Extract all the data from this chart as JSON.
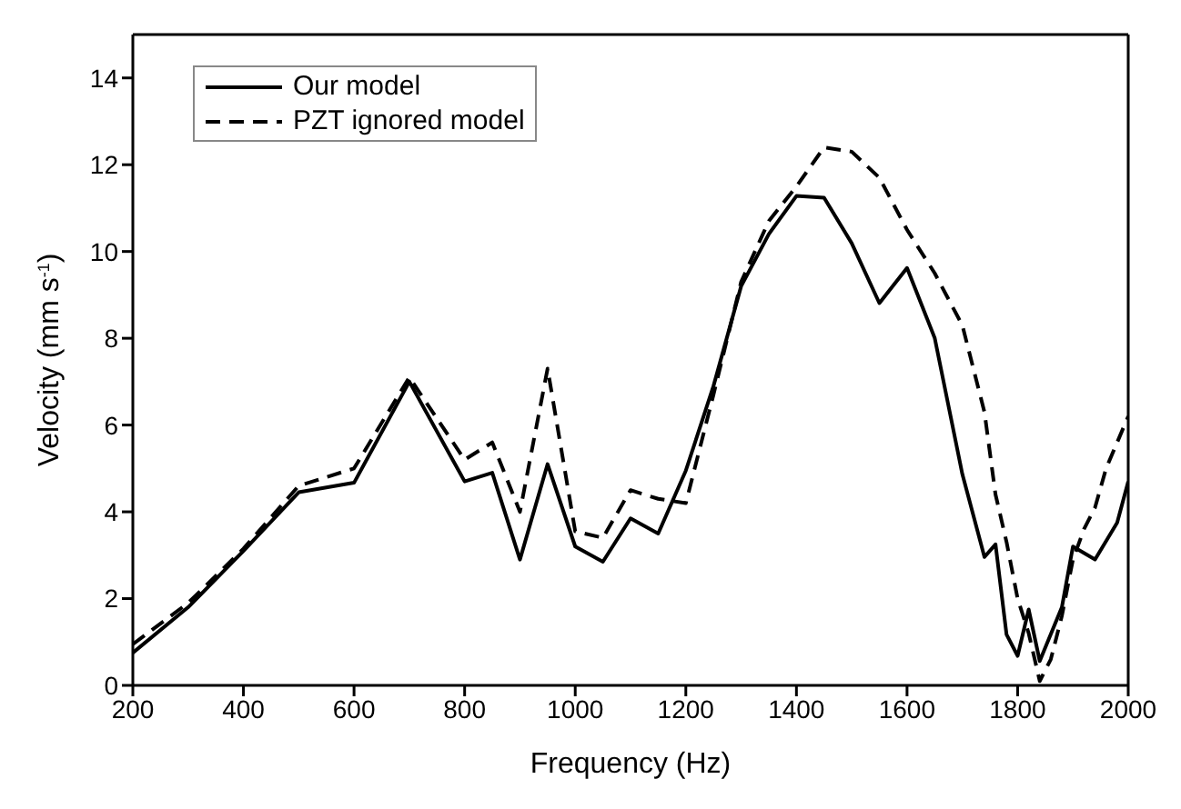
{
  "chart_data": {
    "type": "line",
    "xlabel": "Frequency (Hz)",
    "ylabel": "Velocity (mm s$^{-1}$)",
    "xlim": [
      200,
      2000
    ],
    "xticks": [
      200,
      400,
      600,
      800,
      1000,
      1200,
      1400,
      1600,
      1800,
      2000
    ],
    "ylim": [
      0,
      15
    ],
    "yticks": [
      0,
      2,
      4,
      6,
      8,
      10,
      12,
      14
    ],
    "grid": false,
    "legend": "top left",
    "marker": "none",
    "series": [
      {
        "name": "Our model",
        "color": "#000000",
        "line_style": "solid",
        "x": [
          200,
          300,
          400,
          500,
          600,
          700,
          800,
          850,
          900,
          950,
          1000,
          1050,
          1100,
          1150,
          1200,
          1250,
          1300,
          1350,
          1400,
          1450,
          1500,
          1550,
          1600,
          1650,
          1700,
          1740,
          1760,
          1780,
          1800,
          1820,
          1840,
          1880,
          1900,
          1940,
          1980,
          2000
        ],
        "values": [
          0.75,
          1.8,
          3.1,
          4.45,
          4.67,
          7.0,
          4.7,
          4.9,
          2.9,
          5.1,
          3.2,
          2.85,
          3.85,
          3.5,
          4.95,
          6.9,
          9.2,
          10.4,
          11.28,
          11.24,
          10.19,
          8.81,
          9.62,
          8.01,
          4.87,
          2.96,
          3.25,
          1.17,
          0.68,
          1.75,
          0.56,
          1.8,
          3.2,
          2.9,
          3.75,
          4.7
        ]
      },
      {
        "name": "PZT ignored model",
        "color": "#000000",
        "line_style": "dashed",
        "x": [
          200,
          300,
          400,
          500,
          600,
          700,
          800,
          850,
          900,
          950,
          1000,
          1050,
          1100,
          1150,
          1200,
          1250,
          1300,
          1350,
          1400,
          1450,
          1500,
          1550,
          1600,
          1650,
          1700,
          1740,
          1760,
          1780,
          1800,
          1820,
          1840,
          1860,
          1880,
          1900,
          1920,
          1940,
          1960,
          1980,
          2000
        ],
        "values": [
          0.95,
          1.9,
          3.15,
          4.6,
          5.0,
          7.1,
          5.2,
          5.6,
          4.0,
          7.3,
          3.55,
          3.4,
          4.5,
          4.3,
          4.2,
          6.7,
          9.3,
          10.7,
          11.5,
          12.4,
          12.3,
          11.7,
          10.5,
          9.5,
          8.3,
          6.3,
          4.4,
          3.3,
          2.0,
          1.2,
          0.1,
          0.6,
          1.6,
          2.9,
          3.6,
          4.1,
          5.0,
          5.6,
          6.2
        ]
      }
    ]
  }
}
